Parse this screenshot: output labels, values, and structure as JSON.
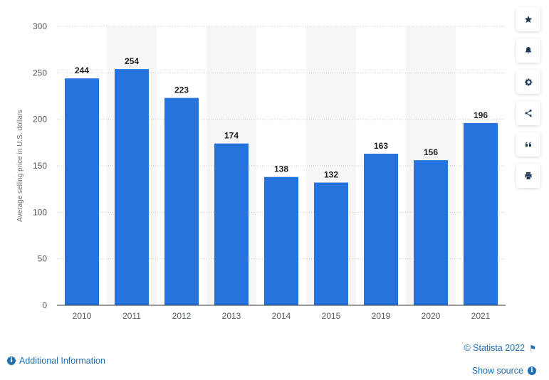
{
  "chart_data": {
    "type": "bar",
    "categories": [
      "2010",
      "2011",
      "2012",
      "2013",
      "2014",
      "2015",
      "2019",
      "2020",
      "2021"
    ],
    "values": [
      244,
      254,
      223,
      174,
      138,
      132,
      163,
      156,
      196
    ],
    "ylabel": "Average selling price in U.S. dollars",
    "xlabel": "",
    "ylim": [
      0,
      300
    ],
    "yticks": [
      0,
      50,
      100,
      150,
      200,
      250,
      300
    ],
    "grid": true,
    "bar_color": "#2673dd",
    "stripe_color": "#f6f6f8"
  },
  "toolbar": {
    "buttons": [
      {
        "name": "star",
        "icon": "star-icon"
      },
      {
        "name": "bell",
        "icon": "bell-icon"
      },
      {
        "name": "settings",
        "icon": "gear-icon"
      },
      {
        "name": "share",
        "icon": "share-icon"
      },
      {
        "name": "cite",
        "icon": "quote-icon"
      },
      {
        "name": "print",
        "icon": "print-icon"
      }
    ],
    "icon_color": "#1e3a56"
  },
  "footer": {
    "additional_info": "Additional Information",
    "copyright": "© Statista 2022",
    "show_source": "Show source"
  },
  "colors": {
    "link": "#1f6fb5"
  }
}
